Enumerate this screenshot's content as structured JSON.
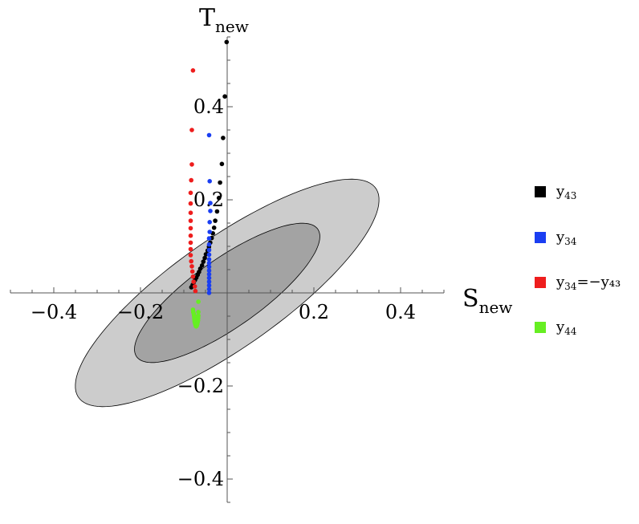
{
  "chart_data": {
    "type": "scatter",
    "x_axis": {
      "label_main": "S",
      "label_sub": "new",
      "range": [
        -0.5,
        0.5
      ],
      "ticks": [
        -0.4,
        -0.2,
        0.2,
        0.4
      ],
      "tick_labels": [
        "−0.4",
        "−0.2",
        "0.2",
        "0.4"
      ]
    },
    "y_axis": {
      "label_main": "T",
      "label_sub": "new",
      "range": [
        -0.45,
        0.55
      ],
      "ticks": [
        0.4,
        0.2,
        -0.2,
        -0.4
      ],
      "tick_labels": [
        "0.4",
        "0.2",
        "−0.2",
        "−0.4"
      ]
    },
    "ellipses": [
      {
        "name": "",
        "center": [
          0,
          0
        ],
        "semi_major": 0.41,
        "semi_minor": 0.12,
        "angle_deg": 32.9,
        "fill": "#cccccc"
      },
      {
        "name": "",
        "center": [
          0,
          0
        ],
        "semi_major": 0.25,
        "semi_minor": 0.075,
        "angle_deg": 32.9,
        "fill": "#a3a3a3"
      }
    ],
    "legend": {
      "placement": "right"
    },
    "series": [
      {
        "name_main": "y",
        "name_sub": "43",
        "name_suffix": "",
        "color": "#000000",
        "points": [
          [
            -0.0825,
            0.012
          ],
          [
            -0.0797,
            0.017
          ],
          [
            -0.077,
            0.023
          ],
          [
            -0.074,
            0.028
          ],
          [
            -0.0712,
            0.033
          ],
          [
            -0.068,
            0.039
          ],
          [
            -0.065,
            0.045
          ],
          [
            -0.062,
            0.052
          ],
          [
            -0.058,
            0.059
          ],
          [
            -0.055,
            0.067
          ],
          [
            -0.0517,
            0.075
          ],
          [
            -0.049,
            0.083
          ],
          [
            -0.045,
            0.091
          ],
          [
            -0.042,
            0.099
          ],
          [
            -0.039,
            0.108
          ],
          [
            -0.0358,
            0.118
          ],
          [
            -0.033,
            0.128
          ],
          [
            -0.0302,
            0.14
          ],
          [
            -0.0275,
            0.155
          ],
          [
            -0.0233,
            0.175
          ],
          [
            -0.0191,
            0.204
          ],
          [
            -0.0164,
            0.237
          ],
          [
            -0.0123,
            0.277
          ],
          [
            -0.0095,
            0.333
          ],
          [
            -0.0054,
            0.422
          ],
          [
            -0.0013,
            0.539
          ]
        ]
      },
      {
        "name_main": "y",
        "name_sub": "34",
        "name_suffix": "",
        "color": "#1a3ef2",
        "points": [
          [
            -0.0417,
            0.0
          ],
          [
            -0.0417,
            0.008
          ],
          [
            -0.0417,
            0.016
          ],
          [
            -0.0417,
            0.024
          ],
          [
            -0.0417,
            0.032
          ],
          [
            -0.0417,
            0.04
          ],
          [
            -0.0417,
            0.048
          ],
          [
            -0.0417,
            0.056
          ],
          [
            -0.0417,
            0.064
          ],
          [
            -0.0417,
            0.072
          ],
          [
            -0.0417,
            0.082
          ],
          [
            -0.0417,
            0.092
          ],
          [
            -0.0417,
            0.104
          ],
          [
            -0.0417,
            0.117
          ],
          [
            -0.0403,
            0.131
          ],
          [
            -0.0403,
            0.152
          ],
          [
            -0.0389,
            0.176
          ],
          [
            -0.0389,
            0.193
          ],
          [
            -0.0403,
            0.24
          ],
          [
            -0.0417,
            0.339
          ]
        ]
      },
      {
        "name_main": "y",
        "name_sub": "34",
        "name_suffix": "=−y₄₃",
        "color": "#ee1d1d",
        "points": [
          [
            -0.0733,
            0.004
          ],
          [
            -0.0747,
            0.014
          ],
          [
            -0.0774,
            0.024
          ],
          [
            -0.0788,
            0.035
          ],
          [
            -0.0802,
            0.046
          ],
          [
            -0.0815,
            0.057
          ],
          [
            -0.0829,
            0.068
          ],
          [
            -0.0843,
            0.081
          ],
          [
            -0.0843,
            0.094
          ],
          [
            -0.0843,
            0.108
          ],
          [
            -0.0843,
            0.123
          ],
          [
            -0.0843,
            0.139
          ],
          [
            -0.0843,
            0.155
          ],
          [
            -0.0843,
            0.172
          ],
          [
            -0.0843,
            0.192
          ],
          [
            -0.0843,
            0.215
          ],
          [
            -0.0829,
            0.242
          ],
          [
            -0.0815,
            0.276
          ],
          [
            -0.0815,
            0.35
          ],
          [
            -0.0788,
            0.478
          ]
        ]
      },
      {
        "name_main": "y",
        "name_sub": "44",
        "name_suffix": "",
        "color": "#66ee22",
        "points": [
          [
            -0.0788,
            -0.036
          ],
          [
            -0.0784,
            -0.041
          ],
          [
            -0.077,
            -0.045
          ],
          [
            -0.0765,
            -0.049
          ],
          [
            -0.076,
            -0.053
          ],
          [
            -0.0756,
            -0.057
          ],
          [
            -0.0751,
            -0.061
          ],
          [
            -0.0747,
            -0.064
          ],
          [
            -0.0733,
            -0.068
          ],
          [
            -0.0724,
            -0.071
          ],
          [
            -0.0714,
            -0.072
          ],
          [
            -0.07,
            -0.07
          ],
          [
            -0.0691,
            -0.067
          ],
          [
            -0.0682,
            -0.063
          ],
          [
            -0.0673,
            -0.059
          ],
          [
            -0.0668,
            -0.054
          ],
          [
            -0.0664,
            -0.049
          ],
          [
            -0.0664,
            -0.041
          ],
          [
            -0.0664,
            -0.019
          ]
        ]
      }
    ]
  }
}
